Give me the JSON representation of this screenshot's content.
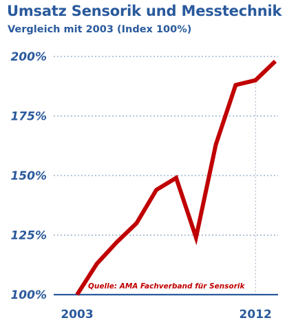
{
  "chart_data": {
    "type": "line",
    "title": "Umsatz Sensorik und Messtechnik",
    "subtitle": "Vergleich mit 2003 (Index 100%)",
    "x": [
      2003,
      2004,
      2005,
      2006,
      2007,
      2008,
      2009,
      2010,
      2011,
      2012,
      2013
    ],
    "series": [
      {
        "values": [
          100,
          113,
          122,
          130,
          144,
          149,
          124,
          163,
          188,
          190,
          198
        ]
      }
    ],
    "xticks": [
      "2003",
      "2012"
    ],
    "yticks": [
      "100%",
      "125%",
      "150%",
      "175%",
      "200%"
    ],
    "ytick_values": [
      100,
      125,
      150,
      175,
      200
    ],
    "ylim": [
      100,
      200
    ],
    "xlim": [
      2003,
      2013
    ],
    "grid": "dashed horizontal",
    "annotation": "Quelle: AMA Fachverband für Sensorik",
    "line_color": "#c00000",
    "text_color": "#2a5a9c"
  }
}
